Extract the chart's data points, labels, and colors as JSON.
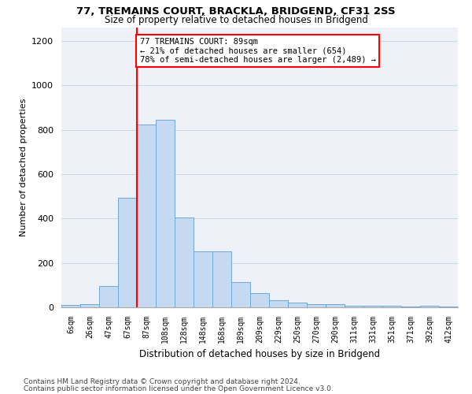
{
  "title1": "77, TREMAINS COURT, BRACKLA, BRIDGEND, CF31 2SS",
  "title2": "Size of property relative to detached houses in Bridgend",
  "xlabel": "Distribution of detached houses by size in Bridgend",
  "ylabel": "Number of detached properties",
  "footer1": "Contains HM Land Registry data © Crown copyright and database right 2024.",
  "footer2": "Contains public sector information licensed under the Open Government Licence v3.0.",
  "bar_labels": [
    "6sqm",
    "26sqm",
    "47sqm",
    "67sqm",
    "87sqm",
    "108sqm",
    "128sqm",
    "148sqm",
    "168sqm",
    "189sqm",
    "209sqm",
    "229sqm",
    "250sqm",
    "270sqm",
    "290sqm",
    "311sqm",
    "331sqm",
    "351sqm",
    "371sqm",
    "392sqm",
    "412sqm"
  ],
  "bar_values": [
    10,
    14,
    97,
    495,
    825,
    845,
    405,
    253,
    253,
    115,
    65,
    32,
    22,
    14,
    14,
    8,
    8,
    8,
    2,
    8,
    2
  ],
  "bar_color": "#c5d9f0",
  "bar_edge_color": "#6fa8d6",
  "red_line_x": 4,
  "annotation_text": "77 TREMAINS COURT: 89sqm\n← 21% of detached houses are smaller (654)\n78% of semi-detached houses are larger (2,489) →",
  "annotation_box_color": "white",
  "annotation_box_edge": "red",
  "ylim": [
    0,
    1260
  ],
  "yticks": [
    0,
    200,
    400,
    600,
    800,
    1000,
    1200
  ],
  "grid_color": "#d0d8e8",
  "background_color": "white",
  "plot_bg_color": "#eef2f8"
}
